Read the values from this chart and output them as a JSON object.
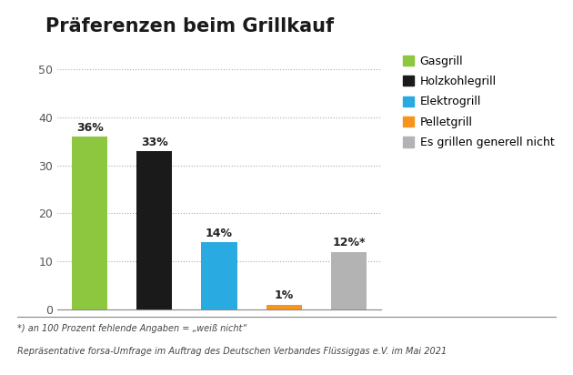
{
  "title": "Präferenzen beim Grillkauf",
  "categories": [
    "Gasgrill",
    "Holzkohlegrill",
    "Elektrogrill",
    "Pelletgrill",
    "Es grillen generell nicht"
  ],
  "values": [
    36,
    33,
    14,
    1,
    12
  ],
  "labels": [
    "36%",
    "33%",
    "14%",
    "1%",
    "12%*"
  ],
  "bar_colors": [
    "#8dc63f",
    "#1a1a1a",
    "#29abe2",
    "#f7941d",
    "#b3b3b3"
  ],
  "ylim": [
    0,
    50
  ],
  "yticks": [
    0,
    10,
    20,
    30,
    40,
    50
  ],
  "background_color": "#ffffff",
  "footnote_line1": "*) an 100 Prozent fehlende Angaben = „weiß nicht“",
  "footnote_line2": "Repräsentative forsa-Umfrage im Auftrag des Deutschen Verbandes Flüssiggas e.V. im Mai 2021",
  "legend_labels": [
    "Gasgrill",
    "Holzkohlegrill",
    "Elektrogrill",
    "Pelletgrill",
    "Es grillen generell nicht"
  ],
  "legend_colors": [
    "#8dc63f",
    "#1a1a1a",
    "#29abe2",
    "#f7941d",
    "#b3b3b3"
  ],
  "title_fontsize": 15,
  "label_fontsize": 9,
  "tick_fontsize": 9,
  "legend_fontsize": 9,
  "footnote_fontsize": 7
}
